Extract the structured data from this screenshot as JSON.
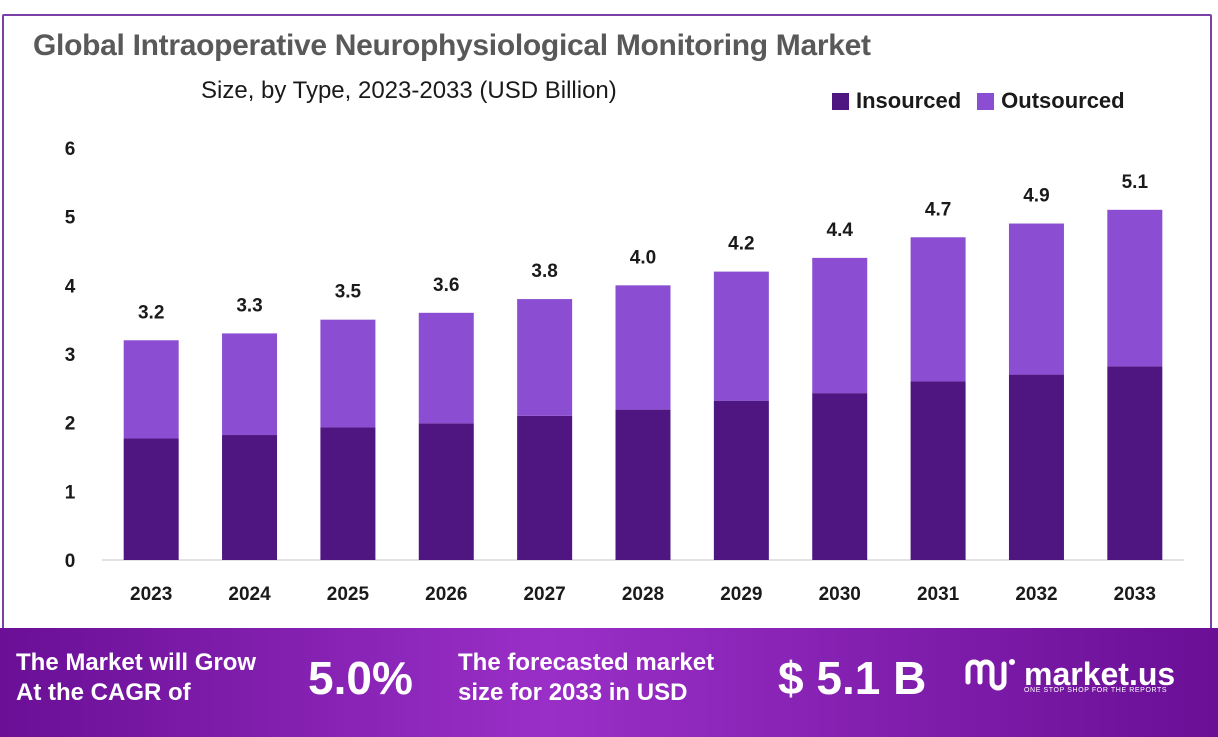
{
  "title": "Global Intraoperative Neurophysiological Monitoring Market",
  "subtitle": "Size, by Type, 2023-2033 (USD Billion)",
  "legend": [
    {
      "label": "Insourced",
      "color": "#4f1581"
    },
    {
      "label": "Outsourced",
      "color": "#8b4ed2"
    }
  ],
  "chart_data": {
    "type": "bar",
    "stacked": true,
    "categories": [
      "2023",
      "2024",
      "2025",
      "2026",
      "2027",
      "2028",
      "2029",
      "2030",
      "2031",
      "2032",
      "2033"
    ],
    "series": [
      {
        "name": "Insourced",
        "color": "#4f1581",
        "values": [
          1.77,
          1.82,
          1.93,
          1.99,
          2.1,
          2.19,
          2.32,
          2.43,
          2.6,
          2.7,
          2.82
        ]
      },
      {
        "name": "Outsourced",
        "color": "#8b4ed2",
        "values": [
          1.43,
          1.48,
          1.57,
          1.61,
          1.7,
          1.81,
          1.88,
          1.97,
          2.1,
          2.2,
          2.28
        ]
      }
    ],
    "totals": [
      "3.2",
      "3.3",
      "3.5",
      "3.6",
      "3.8",
      "4.0",
      "4.2",
      "4.4",
      "4.7",
      "4.9",
      "5.1"
    ],
    "ylim": [
      0,
      6
    ],
    "yticks": [
      0,
      1,
      2,
      3,
      4,
      5,
      6
    ],
    "grid": false,
    "legend_position": "top-right"
  },
  "banner": {
    "text1_line1": "The Market will Grow",
    "text1_line2": "At the CAGR of",
    "cagr": "5.0%",
    "text2_line1": "The forecasted market",
    "text2_line2": "size for 2033 in USD",
    "value": "$ 5.1 B",
    "logo_name": "market.us",
    "logo_tagline": "ONE STOP SHOP FOR THE REPORTS"
  }
}
